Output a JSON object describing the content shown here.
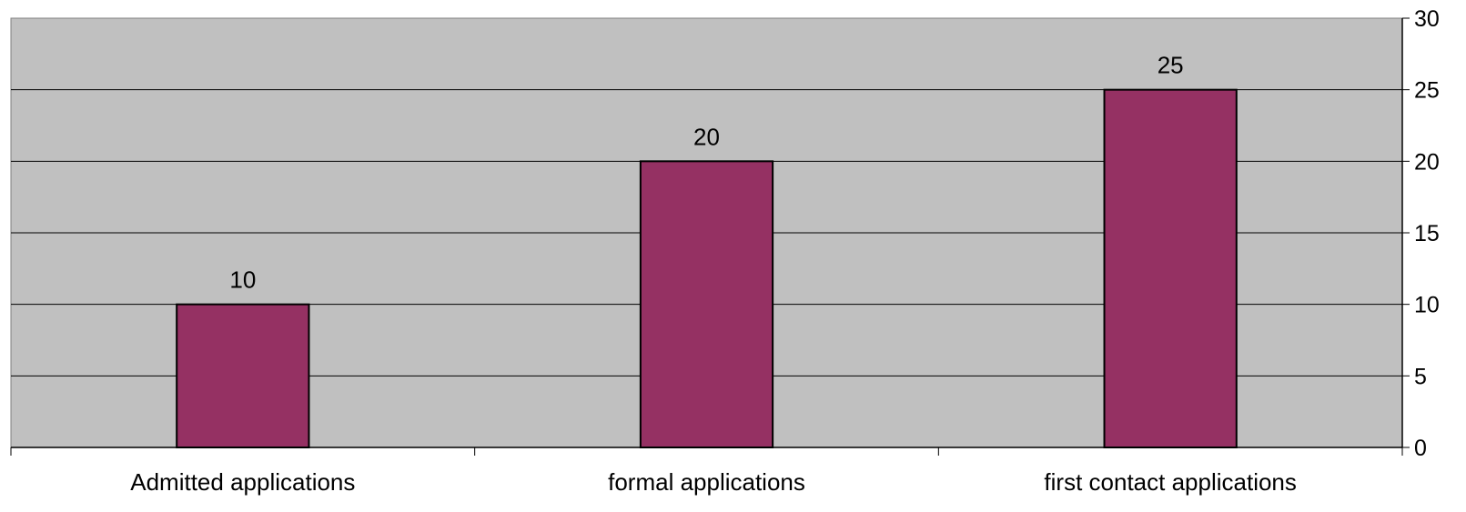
{
  "chart_data": {
    "type": "bar",
    "categories": [
      "Admitted applications",
      "formal applications",
      "first contact applications"
    ],
    "values": [
      10,
      20,
      25
    ],
    "data_labels": [
      "10",
      "20",
      "25"
    ],
    "title": "",
    "xlabel": "",
    "ylabel": "",
    "ylim": [
      0,
      30
    ],
    "yticks": [
      "0",
      "5",
      "10",
      "15",
      "20",
      "25",
      "30"
    ],
    "y_axis_side": "right",
    "grid": true,
    "legend": "none",
    "colors": {
      "plot_background": "#c0c0c0",
      "bar_fill": "#953163",
      "bar_stroke": "#000000",
      "gridline": "#000000"
    }
  }
}
